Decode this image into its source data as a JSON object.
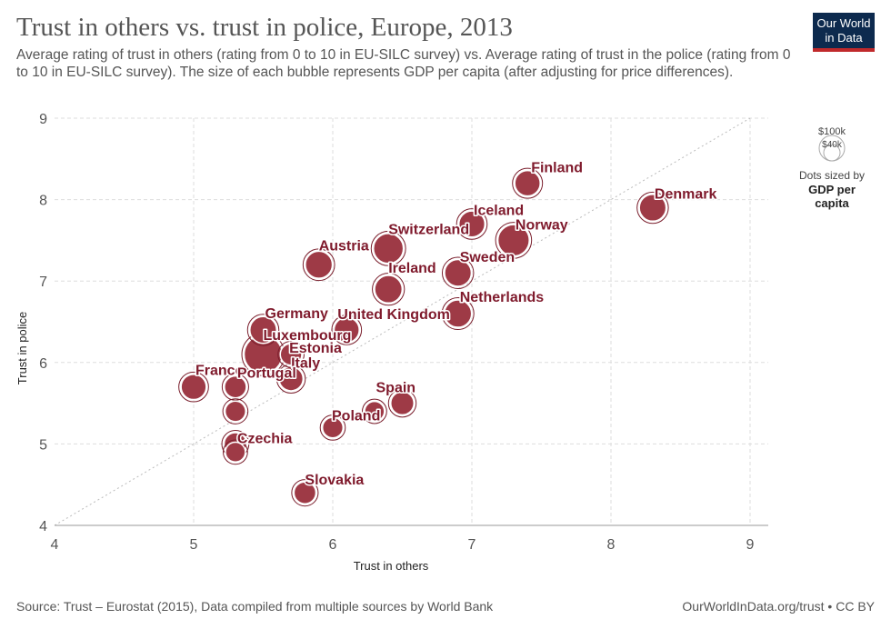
{
  "header": {
    "title": "Trust in others vs. trust in police, Europe, 2013",
    "subtitle": "Average rating of trust in others (rating from 0 to 10 in EU-SILC survey) vs. Average rating of trust in the police (rating from 0 to 10 in EU-SILC survey). The size of each bubble represents GDP per capita (after adjusting for price differences).",
    "logo_line1": "Our World",
    "logo_line2": "in Data"
  },
  "footer": {
    "source": "Source: Trust – Eurostat (2015), Data compiled from multiple sources by World Bank",
    "url": "OurWorldInData.org/trust • CC BY"
  },
  "legend": {
    "large_label": "$100k",
    "small_label": "$40k",
    "caption_line1": "Dots sized by",
    "caption_line2": "GDP per",
    "caption_line3": "capita"
  },
  "chart_data": {
    "type": "scatter",
    "title": "Trust in others vs. trust in police, Europe, 2013",
    "xlabel": "Trust in others",
    "ylabel": "Trust in police",
    "xlim": [
      4,
      9
    ],
    "ylim": [
      4,
      9
    ],
    "xticks": [
      "4",
      "5",
      "6",
      "7",
      "8",
      "9"
    ],
    "yticks": [
      "4",
      "5",
      "6",
      "7",
      "8",
      "9"
    ],
    "grid": true,
    "reference_line": "y = x (dotted)",
    "color": "#9e3a46",
    "size_variable": "GDP per capita",
    "points": [
      {
        "label": "Finland",
        "x": 7.4,
        "y": 8.2,
        "gdp": 40
      },
      {
        "label": "Denmark",
        "x": 8.3,
        "y": 7.9,
        "gdp": 45
      },
      {
        "label": "Iceland",
        "x": 7.0,
        "y": 7.7,
        "gdp": 42
      },
      {
        "label": "Norway",
        "x": 7.3,
        "y": 7.5,
        "gdp": 65
      },
      {
        "label": "Switzerland",
        "x": 6.4,
        "y": 7.4,
        "gdp": 58
      },
      {
        "label": "Austria",
        "x": 5.9,
        "y": 7.2,
        "gdp": 46
      },
      {
        "label": "Sweden",
        "x": 6.9,
        "y": 7.1,
        "gdp": 45
      },
      {
        "label": "Ireland",
        "x": 6.4,
        "y": 6.9,
        "gdp": 48
      },
      {
        "label": "Netherlands",
        "x": 6.9,
        "y": 6.6,
        "gdp": 47
      },
      {
        "label": "Germany",
        "x": 5.5,
        "y": 6.4,
        "gdp": 45
      },
      {
        "label": "United Kingdom",
        "x": 6.1,
        "y": 6.4,
        "gdp": 39
      },
      {
        "label": "Luxembourg",
        "x": 5.5,
        "y": 6.1,
        "gdp": 100
      },
      {
        "label": "Estonia",
        "x": 5.7,
        "y": 6.1,
        "gdp": 27
      },
      {
        "label": "Italy",
        "x": 5.7,
        "y": 5.8,
        "gdp": 35
      },
      {
        "label": "France",
        "x": 5.0,
        "y": 5.7,
        "gdp": 39
      },
      {
        "label": "Portugal",
        "x": 5.3,
        "y": 5.7,
        "gdp": 28
      },
      {
        "label": "",
        "x": 5.3,
        "y": 5.4,
        "gdp": 24
      },
      {
        "label": "Spain",
        "x": 6.5,
        "y": 5.5,
        "gdp": 32
      },
      {
        "label": "",
        "x": 6.3,
        "y": 5.4,
        "gdp": 22
      },
      {
        "label": "Poland",
        "x": 6.0,
        "y": 5.2,
        "gdp": 24
      },
      {
        "label": "Czechia",
        "x": 5.3,
        "y": 5.0,
        "gdp": 30
      },
      {
        "label": "",
        "x": 5.3,
        "y": 4.9,
        "gdp": 22
      },
      {
        "label": "Slovakia",
        "x": 5.8,
        "y": 4.4,
        "gdp": 28
      }
    ]
  }
}
